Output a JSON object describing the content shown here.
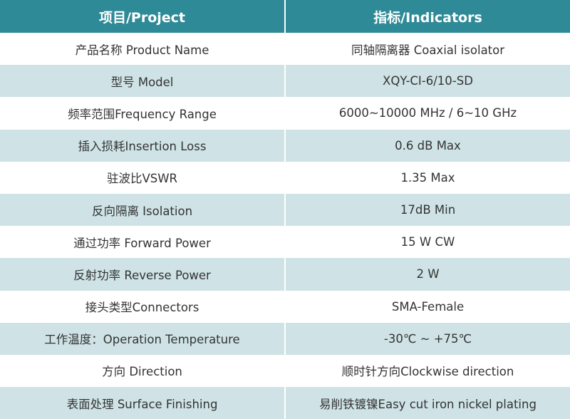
{
  "table": {
    "headers": [
      "项目/Project",
      "指标/Indicators"
    ],
    "rows": [
      [
        "产品名称 Product Name",
        "同轴隔离器 Coaxial isolator"
      ],
      [
        "型号 Model",
        "XQY-CI-6/10-SD"
      ],
      [
        "频率范围Frequency Range",
        "6000~10000 MHz / 6~10 GHz"
      ],
      [
        "插入损耗Insertion Loss",
        "0.6 dB Max"
      ],
      [
        "驻波比VSWR",
        "1.35 Max"
      ],
      [
        "反向隔离 Isolation",
        "17dB Min"
      ],
      [
        "通过功率 Forward Power",
        "15 W CW"
      ],
      [
        "反射功率 Reverse Power",
        "2 W"
      ],
      [
        "接头类型Connectors",
        "SMA-Female"
      ],
      [
        "工作温度：Operation Temperature",
        "-30℃ ~ +75℃"
      ],
      [
        "方向 Direction",
        "顺时针方向Clockwise direction"
      ],
      [
        "表面处理 Surface Finishing",
        "易削铁镀镍Easy cut iron nickel plating"
      ]
    ]
  },
  "colors": {
    "header_bg": "#2e8a96",
    "stripe_bg": "#cfe3e6",
    "text": "#333333"
  }
}
